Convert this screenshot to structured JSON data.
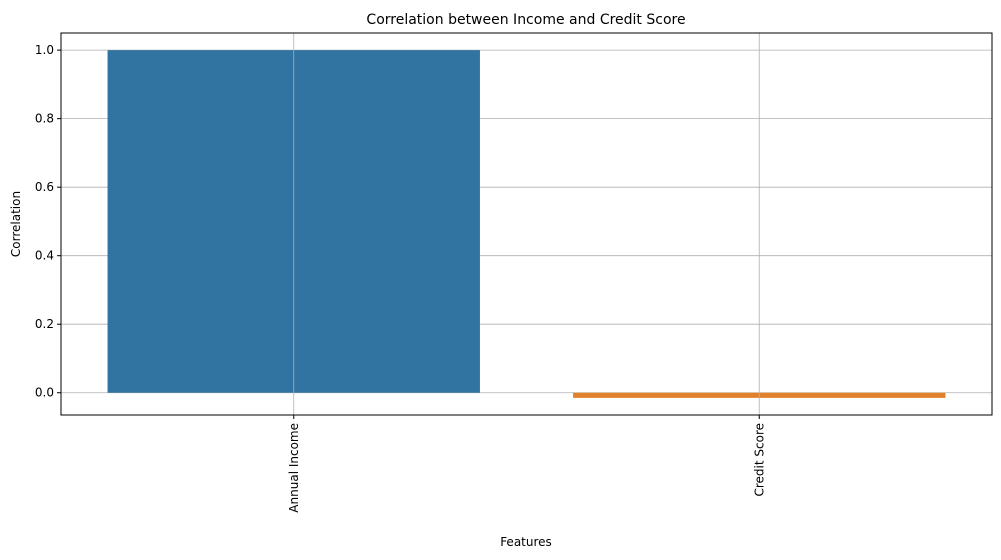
{
  "chart_data": {
    "type": "bar",
    "title": "Correlation between Income and Credit Score",
    "xlabel": "Features",
    "ylabel": "Correlation",
    "categories": [
      "Annual Income",
      "Credit Score"
    ],
    "values": [
      1.0,
      -0.015
    ],
    "ylim": [
      -0.065,
      1.05
    ],
    "yticks": [
      0.0,
      0.2,
      0.4,
      0.6,
      0.8,
      1.0
    ],
    "ytick_labels": [
      "0.0",
      "0.2",
      "0.4",
      "0.6",
      "0.8",
      "1.0"
    ],
    "grid": true,
    "bar_colors": [
      "#3274a1",
      "#e1812c"
    ],
    "grid_color": "#b0b0b0",
    "xtick_rotation": "vertical"
  }
}
